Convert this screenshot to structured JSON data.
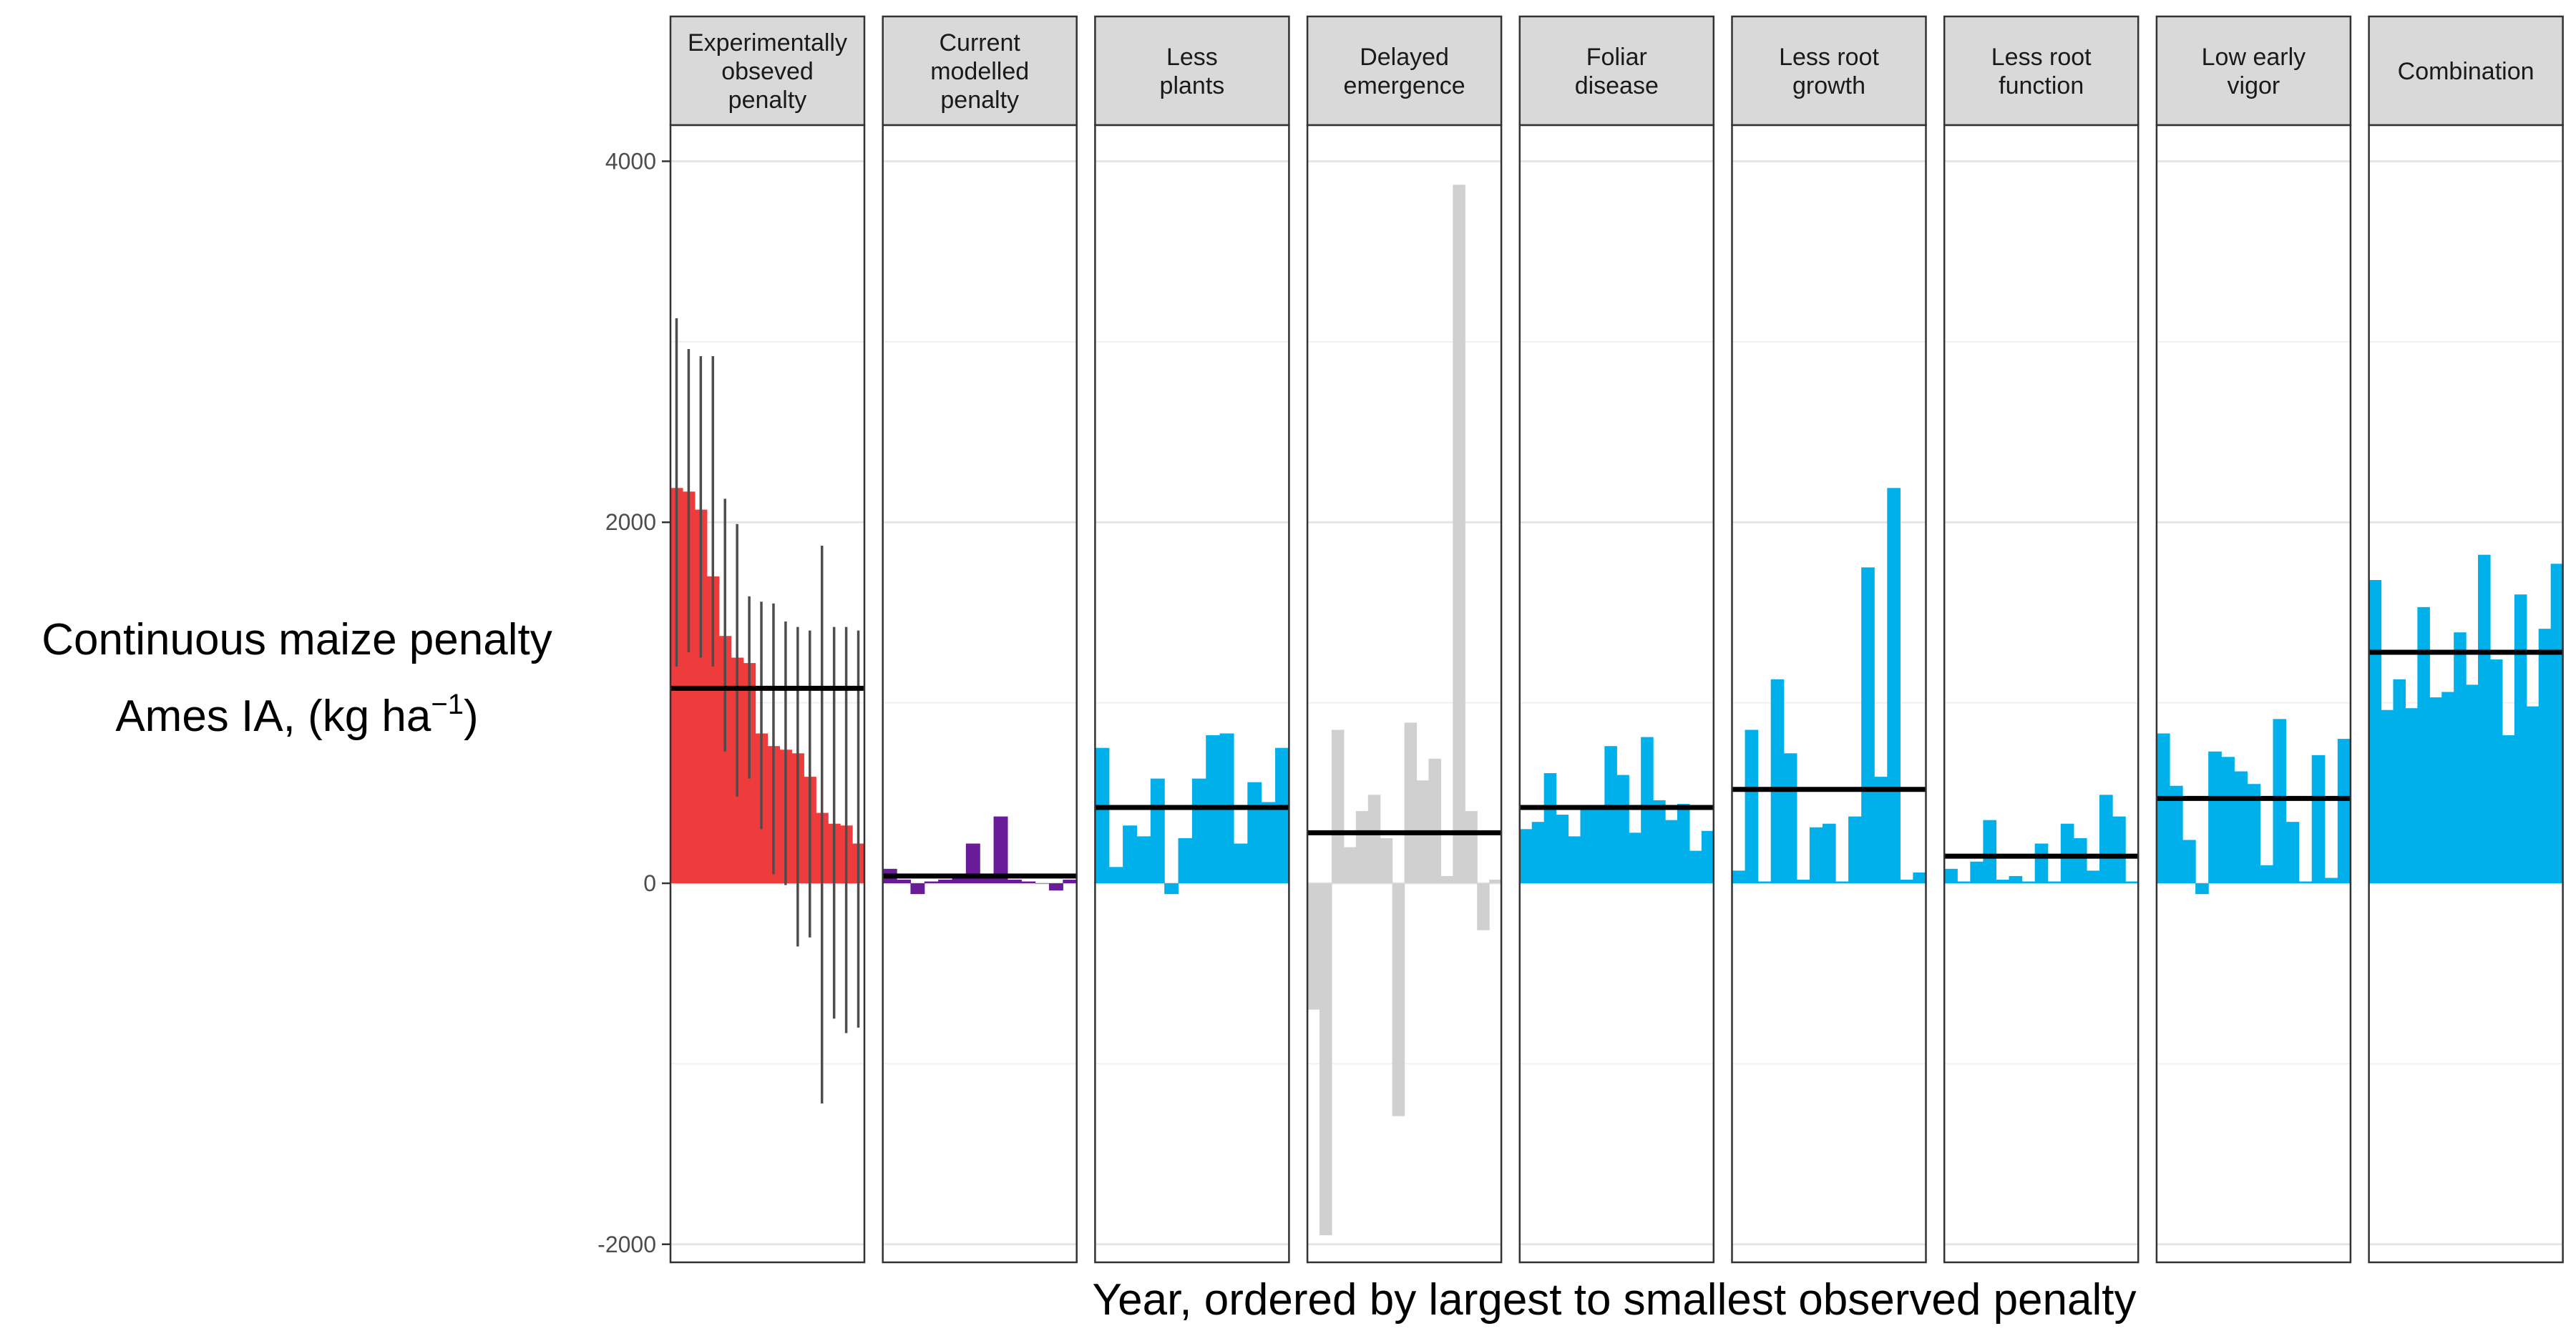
{
  "chart_data": {
    "type": "bar",
    "ylabel_line1": "Continuous maize penalty",
    "ylabel_line2": "Ames IA, (kg  ha",
    "ylabel_sup": "−1",
    "ylabel_close": ")",
    "xlabel": "Year, ordered by largest to smallest observed penalty",
    "ylim": [
      -2100,
      4200
    ],
    "yticks": [
      -2000,
      0,
      2000,
      4000
    ],
    "ytick_labels": [
      "-2000",
      "0",
      "2000",
      "4000"
    ],
    "grid": true,
    "legend": "none",
    "panels": [
      {
        "title_lines": [
          "Experimentally",
          "obseved",
          "penalty"
        ],
        "color": "#EE3B3B",
        "mean": 1080,
        "values": [
          2190,
          2170,
          2070,
          1700,
          1370,
          1250,
          1220,
          830,
          760,
          740,
          720,
          590,
          390,
          330,
          320,
          220
        ],
        "err_low": [
          1200,
          1280,
          1250,
          1200,
          730,
          480,
          580,
          300,
          50,
          -10,
          -350,
          -300,
          -1220,
          -750,
          -830,
          -800
        ],
        "err_high": [
          3130,
          2960,
          2920,
          2920,
          2130,
          1990,
          1590,
          1560,
          1550,
          1450,
          1420,
          1400,
          1870,
          1420,
          1420,
          1400
        ]
      },
      {
        "title_lines": [
          "Current",
          "modelled",
          "penalty"
        ],
        "color": "#6A1B9A",
        "mean": 40,
        "values": [
          80,
          20,
          -60,
          10,
          20,
          50,
          220,
          40,
          370,
          20,
          10,
          0,
          -40,
          20
        ]
      },
      {
        "title_lines": [
          "Less",
          "plants"
        ],
        "color": "#00B0EB",
        "mean": 420,
        "values": [
          750,
          90,
          320,
          260,
          580,
          -60,
          250,
          580,
          820,
          830,
          220,
          560,
          450,
          750
        ]
      },
      {
        "title_lines": [
          "Delayed",
          "emergence"
        ],
        "color": "#D0D0D0",
        "mean": 280,
        "values": [
          -700,
          -1950,
          850,
          200,
          400,
          490,
          250,
          -1290,
          890,
          570,
          690,
          40,
          3870,
          400,
          -260,
          20
        ]
      },
      {
        "title_lines": [
          "Foliar",
          "disease"
        ],
        "color": "#00B0EB",
        "mean": 420,
        "values": [
          300,
          340,
          610,
          380,
          260,
          420,
          430,
          760,
          600,
          280,
          810,
          460,
          350,
          440,
          180,
          290
        ]
      },
      {
        "title_lines": [
          "Less root",
          "growth"
        ],
        "color": "#00B0EB",
        "mean": 520,
        "values": [
          70,
          850,
          10,
          1130,
          720,
          20,
          310,
          330,
          10,
          370,
          1750,
          590,
          2190,
          20,
          60
        ]
      },
      {
        "title_lines": [
          "Less root",
          "function"
        ],
        "color": "#00B0EB",
        "mean": 150,
        "values": [
          80,
          10,
          120,
          350,
          20,
          40,
          10,
          220,
          10,
          330,
          250,
          70,
          490,
          370,
          10
        ]
      },
      {
        "title_lines": [
          "Low early",
          "vigor"
        ],
        "color": "#00B0EB",
        "mean": 470,
        "values": [
          830,
          540,
          240,
          -60,
          730,
          700,
          620,
          550,
          100,
          910,
          340,
          10,
          710,
          30,
          800
        ]
      },
      {
        "title_lines": [
          "Combination"
        ],
        "color": "#00B0EB",
        "mean": 1280,
        "values": [
          1680,
          960,
          1130,
          970,
          1530,
          1030,
          1060,
          1390,
          1100,
          1820,
          1240,
          820,
          1600,
          980,
          1410,
          1770
        ]
      }
    ]
  }
}
